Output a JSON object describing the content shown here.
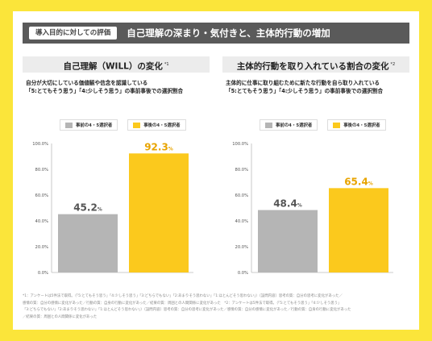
{
  "header": {
    "tag": "導入目的に対しての評価",
    "title": "自己理解の深まり・気付きと、主体的行動の増加"
  },
  "colors": {
    "before": "#b5b5b5",
    "after": "#fbc91d",
    "after_label": "#e8a400",
    "background": "#fbe53a"
  },
  "panels": [
    {
      "title": "自己理解（WILL）の変化",
      "note_mark": "*1",
      "desc_line1": "自分が大切にしている価値観や信念を認識している",
      "desc_line2": "「5:とてもそう思う」「4:少しそう思う」の事前事後での選択割合",
      "legend_before": "事前の4・5選択者",
      "legend_after": "事後の4・5選択者"
    },
    {
      "title": "主体的行動を取り入れている割合の変化",
      "note_mark": "*2",
      "desc_line1": "主体的に仕事に取り組むために新たな行動を自ら取り入れている",
      "desc_line2": "「5:とてもそう思う」「4:少しそう思う」の事前事後での選択割合",
      "legend_before": "事前の4・5選択者",
      "legend_after": "事後の4・5選択者"
    }
  ],
  "chart_data": [
    {
      "type": "bar",
      "categories": [
        "事前の4・5選択者",
        "事後の4・5選択者"
      ],
      "values": [
        45.2,
        92.3
      ],
      "unit": "%",
      "ylim": [
        0,
        100
      ],
      "yticks": [
        "0.0%",
        "20.0%",
        "40.0%",
        "60.0%",
        "80.0%",
        "100.0%"
      ],
      "grid": false
    },
    {
      "type": "bar",
      "categories": [
        "事前の4・5選択者",
        "事後の4・5選択者"
      ],
      "values": [
        48.4,
        65.4
      ],
      "unit": "%",
      "ylim": [
        0,
        100
      ],
      "yticks": [
        "0.0%",
        "20.0%",
        "40.0%",
        "60.0%",
        "80.0%",
        "100.0%"
      ],
      "grid": false
    }
  ],
  "footnote": {
    "line1": "*1：アンケートは5件法で取得。（「5:とてもそう思う」「4:少しそう思う」「3:どちらでもない」「2:あまりそう思わない」「1:ほとんどそう思わない」）〔設問内容〕思考の質：自分の思考に変化があった／",
    "line2": "感情の質：自分の感情に変化があった／行動の質：自身の行動に変化があった／結果の質：周囲との人間関係に変化があった　*2：アンケートは5件法で取得。（「5:とてもそう思う」「4:少しそう思う」",
    "line3": "「3:どちらでもない」「2:あまりそう思わない」「1:ほとんどそう思わない」）〔設問内容〕思考の質：自分の思考に変化があった／感情の質：自分の感情に変化があった／行動の質：自身の行動に変化があった",
    "line4": "／結果の質：周囲との人間関係に変化があった"
  }
}
